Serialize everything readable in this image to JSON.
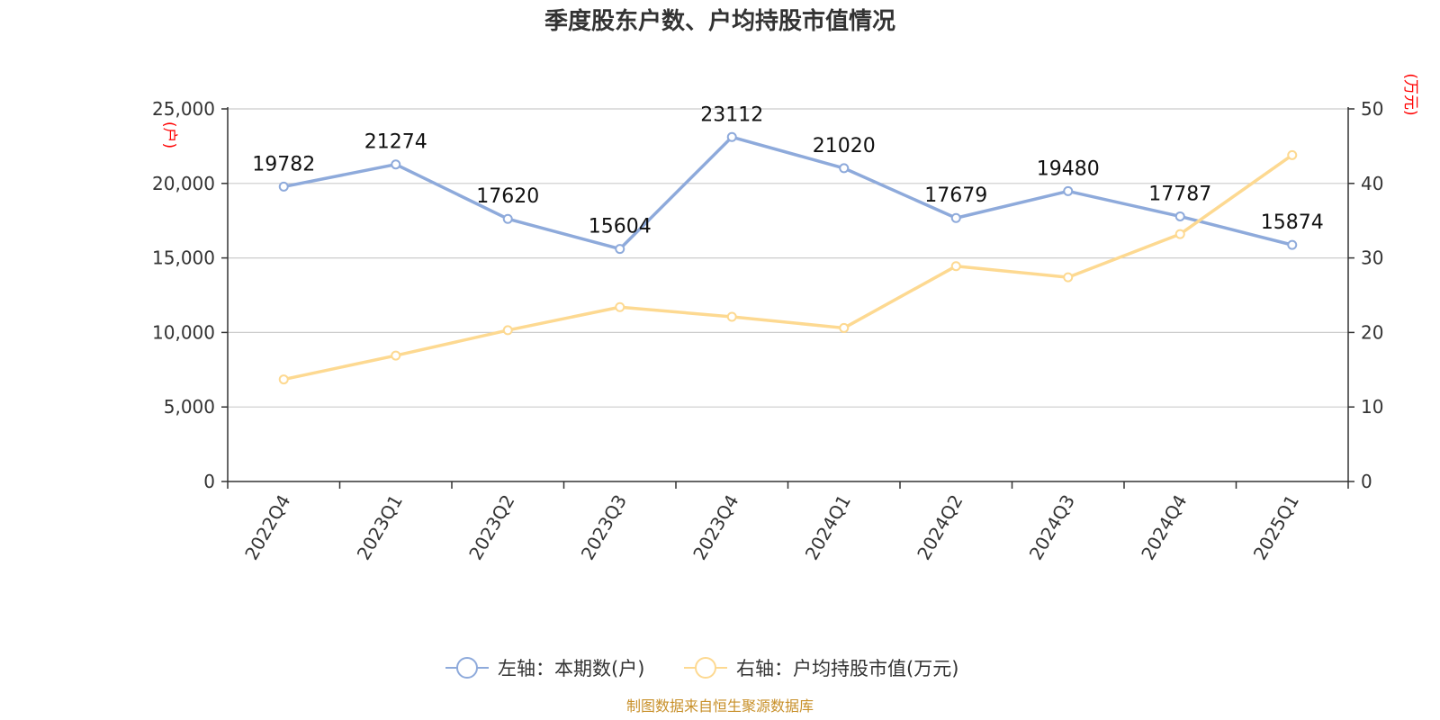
{
  "chart_data": {
    "type": "line",
    "title": "季度股东户数、户均持股市值情况",
    "categories": [
      "2022Q4",
      "2023Q1",
      "2023Q2",
      "2023Q3",
      "2023Q4",
      "2024Q1",
      "2024Q2",
      "2024Q3",
      "2024Q4",
      "2025Q1"
    ],
    "left_axis": {
      "unit": "(户)",
      "ylim": [
        0,
        25000
      ],
      "ticks": [
        "0",
        "5,000",
        "10,000",
        "15,000",
        "20,000",
        "25,000"
      ]
    },
    "right_axis": {
      "unit": "(万元)",
      "ylim": [
        0,
        50
      ],
      "ticks": [
        "0",
        "10",
        "20",
        "30",
        "40",
        "50"
      ]
    },
    "series": [
      {
        "name": "左轴：本期数(户)",
        "axis": "left",
        "color": "#8eaadb",
        "values": [
          19782,
          21274,
          17620,
          15604,
          23112,
          21020,
          17679,
          19480,
          17787,
          15874
        ],
        "labels": [
          "19782",
          "21274",
          "17620",
          "15604",
          "23112",
          "21020",
          "17679",
          "19480",
          "17787",
          "15874"
        ]
      },
      {
        "name": "右轴：户均持股市值(万元)",
        "axis": "right",
        "color": "#fdd991",
        "values": [
          13.7,
          16.9,
          20.3,
          23.4,
          22.1,
          20.6,
          28.9,
          27.4,
          33.2,
          43.8
        ]
      }
    ],
    "grid": true,
    "legend_position": "bottom-center"
  },
  "source_note": "制图数据来自恒生聚源数据库"
}
